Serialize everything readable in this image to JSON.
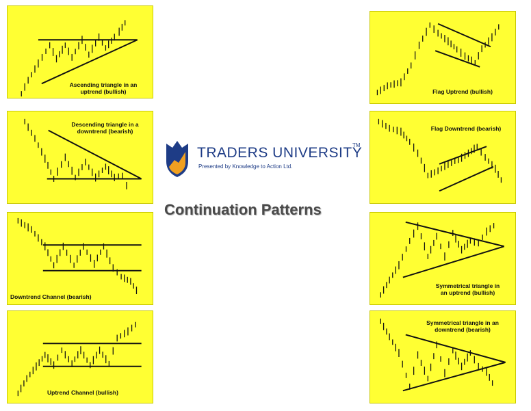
{
  "branding": {
    "name": "TRADERS UNIVERSITY",
    "trademark": "TM",
    "tagline": "Presented by Knowledge to Action Ltd."
  },
  "title": "Continuation Patterns",
  "colors": {
    "panel_background": "#ffff33",
    "ink": "#111111",
    "brand": "#1e3c86",
    "shield_orange": "#f0a020"
  },
  "panels": [
    {
      "id": "ascending-triangle",
      "caption": "Ascending triangle in an\nuptrend (bullish)"
    },
    {
      "id": "descending-triangle",
      "caption": "Descending triangle in a\ndowntrend (bearish)"
    },
    {
      "id": "downtrend-channel",
      "caption": "Downtrend Channel (bearish)"
    },
    {
      "id": "uptrend-channel",
      "caption": "Uptrend Channel (bullish)"
    },
    {
      "id": "flag-uptrend",
      "caption": "Flag Uptrend (bullish)"
    },
    {
      "id": "flag-downtrend",
      "caption": "Flag Downtrend (bearish)"
    },
    {
      "id": "symmetrical-triangle-uptrend",
      "caption": "Symmetrical triangle in\nan uptrend (bullish)"
    },
    {
      "id": "symmetrical-triangle-downtrend",
      "caption": "Symmetrical triangle in an\ndowntrend (bearish)"
    }
  ]
}
